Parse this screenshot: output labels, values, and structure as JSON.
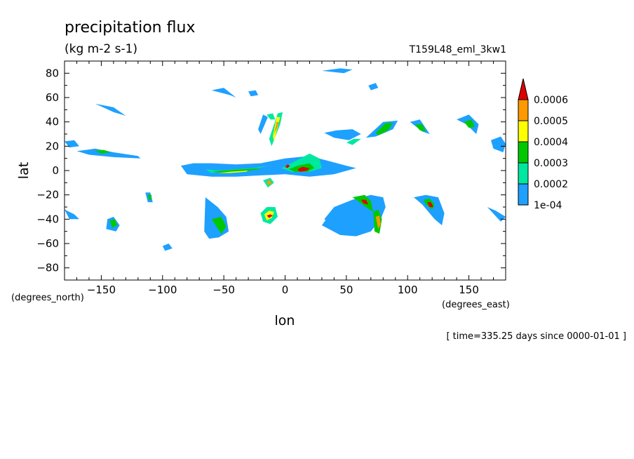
{
  "chart_data": {
    "type": "heatmap",
    "title": "precipitation flux",
    "subtitle": "(kg m-2 s-1)",
    "run_label": "T159L48_eml_3kw1",
    "xlabel": "lon",
    "ylabel": "lat",
    "x_units": "(degrees_east)",
    "y_units": "(degrees_north)",
    "time_label": "[ time=335.25 days since 0000-01-01 ]",
    "xlim": [
      -180,
      180
    ],
    "ylim": [
      -90,
      90
    ],
    "x_ticks": [
      -150,
      -100,
      -50,
      0,
      50,
      100,
      150
    ],
    "y_ticks": [
      80,
      60,
      40,
      20,
      0,
      -20,
      -40,
      -60,
      -80
    ],
    "grid": false,
    "legend_position": "right",
    "colorbar": {
      "levels": [
        0.0001,
        0.0002,
        0.0003,
        0.0004,
        0.0005,
        0.0006
      ],
      "labels": [
        "1e-04",
        "0.0002",
        "0.0003",
        "0.0004",
        "0.0005",
        "0.0006"
      ],
      "colors": [
        "#1ea0ff",
        "#00e8a0",
        "#00c800",
        "#ffff00",
        "#ff9900",
        "#e00000"
      ]
    },
    "features": [
      {
        "lon": [
          -85,
          -75,
          -60,
          -40,
          -20,
          0,
          20,
          35,
          50,
          58,
          40,
          20,
          0,
          -20,
          -40,
          -60,
          -80,
          -85
        ],
        "lat": [
          4,
          6,
          6,
          5,
          6,
          10,
          12,
          8,
          4,
          2,
          -3,
          -5,
          -3,
          -4,
          -5,
          -5,
          -3,
          4
        ],
        "level": 1
      },
      {
        "lon": [
          -65,
          -55,
          -40,
          -25,
          -15,
          -10,
          -25,
          -45,
          -60,
          -65
        ],
        "lat": [
          1,
          0,
          1,
          2,
          4,
          5,
          1,
          -1,
          -2,
          1
        ],
        "level": 2
      },
      {
        "lon": [
          -60,
          -50,
          -35,
          -22,
          -20,
          -35,
          -50,
          -60
        ],
        "lat": [
          -1,
          -2,
          -1,
          1,
          2,
          1,
          0,
          -1
        ],
        "level": 3
      },
      {
        "lon": [
          -55,
          -45,
          -32,
          -30,
          -45,
          -55
        ],
        "lat": [
          -2,
          -2,
          -1,
          0,
          -1,
          -2
        ],
        "level": 4
      },
      {
        "lon": [
          -3,
          5,
          20,
          28,
          30,
          20,
          5,
          -3
        ],
        "lat": [
          2,
          6,
          14,
          10,
          2,
          -1,
          -1,
          2
        ],
        "level": 2
      },
      {
        "lon": [
          3,
          10,
          20,
          24,
          18,
          8,
          3
        ],
        "lat": [
          1,
          4,
          6,
          2,
          -1,
          -1,
          1
        ],
        "level": 3
      },
      {
        "lon": [
          10,
          14,
          20,
          18,
          12,
          10
        ],
        "lat": [
          1,
          3,
          2,
          0,
          -1,
          1
        ],
        "level": 6
      },
      {
        "lon": [
          0,
          2,
          4,
          2,
          0
        ],
        "lat": [
          3,
          5,
          4,
          2,
          3
        ],
        "level": 6
      },
      {
        "lon": [
          -13,
          -6,
          -2,
          -4,
          -11,
          -13
        ],
        "lat": [
          26,
          47,
          48,
          38,
          20,
          26
        ],
        "level": 2
      },
      {
        "lon": [
          -10,
          -7,
          -4,
          -6,
          -9,
          -10
        ],
        "lat": [
          28,
          44,
          44,
          36,
          24,
          28
        ],
        "level": 4
      },
      {
        "lon": [
          -9,
          -7,
          -5,
          -7,
          -9
        ],
        "lat": [
          30,
          40,
          40,
          34,
          30
        ],
        "level": 5
      },
      {
        "lon": [
          -15,
          -10,
          -8,
          -12,
          -15
        ],
        "lat": [
          46,
          47,
          42,
          42,
          46
        ],
        "level": 2
      },
      {
        "lon": [
          -22,
          -18,
          -14,
          -20,
          -22
        ],
        "lat": [
          34,
          46,
          44,
          30,
          34
        ],
        "level": 1
      },
      {
        "lon": [
          -18,
          -12,
          -9,
          -14,
          -18
        ],
        "lat": [
          -8,
          -6,
          -10,
          -14,
          -8
        ],
        "level": 2
      },
      {
        "lon": [
          -15,
          -12,
          -11,
          -14,
          -15
        ],
        "lat": [
          -9,
          -8,
          -11,
          -12,
          -9
        ],
        "level": 5
      },
      {
        "lon": [
          -20,
          -15,
          -8,
          -6,
          -12,
          -18,
          -20
        ],
        "lat": [
          -35,
          -30,
          -30,
          -38,
          -44,
          -42,
          -35
        ],
        "level": 2
      },
      {
        "lon": [
          -17,
          -13,
          -9,
          -11,
          -15,
          -17
        ],
        "lat": [
          -36,
          -33,
          -34,
          -39,
          -41,
          -36
        ],
        "level": 4
      },
      {
        "lon": [
          -15,
          -12,
          -10,
          -13,
          -15
        ],
        "lat": [
          -37,
          -36,
          -37,
          -39,
          -37
        ],
        "level": 6
      },
      {
        "lon": [
          30,
          45,
          58,
          70,
          78,
          82,
          80,
          70,
          55,
          40,
          32,
          45,
          60,
          70,
          72,
          65,
          50,
          35,
          30
        ],
        "lat": [
          -45,
          -53,
          -54,
          -50,
          -40,
          -30,
          -22,
          -20,
          -24,
          -30,
          -40,
          -50,
          -50,
          -42,
          -32,
          -25,
          -30,
          -38,
          -45
        ],
        "level": 1
      },
      {
        "lon": [
          55,
          65,
          70,
          72,
          66,
          58,
          55
        ],
        "lat": [
          -22,
          -20,
          -25,
          -34,
          -30,
          -24,
          -22
        ],
        "level": 3
      },
      {
        "lon": [
          62,
          66,
          68,
          64,
          62
        ],
        "lat": [
          -24,
          -24,
          -28,
          -27,
          -24
        ],
        "level": 6
      },
      {
        "lon": [
          72,
          76,
          79,
          77,
          73,
          72
        ],
        "lat": [
          -34,
          -32,
          -40,
          -52,
          -50,
          -34
        ],
        "level": 3
      },
      {
        "lon": [
          74,
          77,
          78,
          76,
          74
        ],
        "lat": [
          -38,
          -37,
          -44,
          -48,
          -38
        ],
        "level": 5
      },
      {
        "lon": [
          105,
          115,
          125,
          130,
          128,
          122,
          112,
          105
        ],
        "lat": [
          -22,
          -20,
          -22,
          -35,
          -45,
          -40,
          -28,
          -22
        ],
        "level": 1
      },
      {
        "lon": [
          113,
          118,
          122,
          120,
          115,
          113
        ],
        "lat": [
          -24,
          -23,
          -28,
          -32,
          -28,
          -24
        ],
        "level": 3
      },
      {
        "lon": [
          116,
          119,
          121,
          118,
          116
        ],
        "lat": [
          -26,
          -26,
          -30,
          -30,
          -26
        ],
        "level": 6
      },
      {
        "lon": [
          32,
          42,
          55,
          62,
          52,
          40,
          32
        ],
        "lat": [
          31,
          33,
          34,
          30,
          25,
          27,
          31
        ],
        "level": 1
      },
      {
        "lon": [
          50,
          56,
          62,
          55,
          50
        ],
        "lat": [
          23,
          26,
          26,
          21,
          23
        ],
        "level": 2
      },
      {
        "lon": [
          66,
          80,
          92,
          88,
          74,
          66
        ],
        "lat": [
          27,
          40,
          41,
          34,
          28,
          27
        ],
        "level": 1
      },
      {
        "lon": [
          74,
          82,
          88,
          84,
          76,
          74
        ],
        "lat": [
          31,
          39,
          39,
          33,
          29,
          31
        ],
        "level": 3
      },
      {
        "lon": [
          102,
          110,
          118,
          112,
          102
        ],
        "lat": [
          40,
          42,
          30,
          32,
          40
        ],
        "level": 1
      },
      {
        "lon": [
          106,
          112,
          115,
          110,
          106
        ],
        "lat": [
          38,
          38,
          32,
          33,
          38
        ],
        "level": 3
      },
      {
        "lon": [
          140,
          150,
          158,
          156,
          148,
          140
        ],
        "lat": [
          42,
          46,
          38,
          30,
          38,
          42
        ],
        "level": 1
      },
      {
        "lon": [
          146,
          152,
          155,
          150,
          146
        ],
        "lat": [
          40,
          42,
          36,
          35,
          40
        ],
        "level": 3
      },
      {
        "lon": [
          168,
          176,
          180,
          178,
          170,
          168
        ],
        "lat": [
          25,
          28,
          22,
          15,
          18,
          25
        ],
        "level": 1
      },
      {
        "lon": [
          -145,
          -140,
          -135,
          -138,
          -146,
          -145
        ],
        "lat": [
          -40,
          -38,
          -45,
          -50,
          -48,
          -40
        ],
        "level": 1
      },
      {
        "lon": [
          -143,
          -139,
          -137,
          -141,
          -143
        ],
        "lat": [
          -41,
          -40,
          -45,
          -47,
          -41
        ],
        "level": 3
      },
      {
        "lon": [
          -114,
          -110,
          -108,
          -112,
          -114
        ],
        "lat": [
          -18,
          -18,
          -26,
          -26,
          -18
        ],
        "level": 1
      },
      {
        "lon": [
          -112,
          -109,
          -109,
          -111,
          -112
        ],
        "lat": [
          -20,
          -20,
          -24,
          -24,
          -20
        ],
        "level": 3
      },
      {
        "lon": [
          -65,
          -55,
          -48,
          -46,
          -54,
          -62,
          -66,
          -65
        ],
        "lat": [
          -22,
          -30,
          -38,
          -50,
          -55,
          -56,
          -50,
          -22
        ],
        "level": 1
      },
      {
        "lon": [
          -60,
          -52,
          -48,
          -52,
          -60
        ],
        "lat": [
          -40,
          -38,
          -46,
          -52,
          -40
        ],
        "level": 3
      },
      {
        "lon": [
          -170,
          -155,
          -140,
          -120,
          -118,
          -140,
          -160,
          -170
        ],
        "lat": [
          16,
          18,
          15,
          12,
          10,
          11,
          13,
          16
        ],
        "level": 1
      },
      {
        "lon": [
          -155,
          -148,
          -142,
          -150,
          -155
        ],
        "lat": [
          16,
          17,
          15,
          14,
          16
        ],
        "level": 3
      },
      {
        "lon": [
          -155,
          -140,
          -130,
          -140,
          -155
        ],
        "lat": [
          55,
          52,
          45,
          48,
          55
        ],
        "level": 1
      },
      {
        "lon": [
          -60,
          -50,
          -40,
          -45,
          -60
        ],
        "lat": [
          66,
          68,
          60,
          62,
          66
        ],
        "level": 1
      },
      {
        "lon": [
          30,
          45,
          55,
          48,
          30
        ],
        "lat": [
          82,
          84,
          83,
          80,
          82
        ],
        "level": 1
      },
      {
        "lon": [
          -180,
          -172,
          -168,
          -176,
          -180
        ],
        "lat": [
          -32,
          -36,
          -40,
          -40,
          -32
        ],
        "level": 1
      },
      {
        "lon": [
          165,
          172,
          180,
          176,
          165
        ],
        "lat": [
          -30,
          -33,
          -38,
          -42,
          -30
        ],
        "level": 1
      },
      {
        "lon": [
          -100,
          -95,
          -92,
          -98,
          -100
        ],
        "lat": [
          -62,
          -60,
          -64,
          -66,
          -62
        ],
        "level": 1
      },
      {
        "lon": [
          -180,
          -172,
          -168,
          -176,
          -180
        ],
        "lat": [
          24,
          25,
          20,
          19,
          24
        ],
        "level": 1
      },
      {
        "lon": [
          68,
          74,
          76,
          70,
          68
        ],
        "lat": [
          70,
          72,
          68,
          66,
          70
        ],
        "level": 1
      },
      {
        "lon": [
          -30,
          -24,
          -22,
          -28,
          -30
        ],
        "lat": [
          65,
          66,
          62,
          61,
          65
        ],
        "level": 1
      }
    ]
  }
}
